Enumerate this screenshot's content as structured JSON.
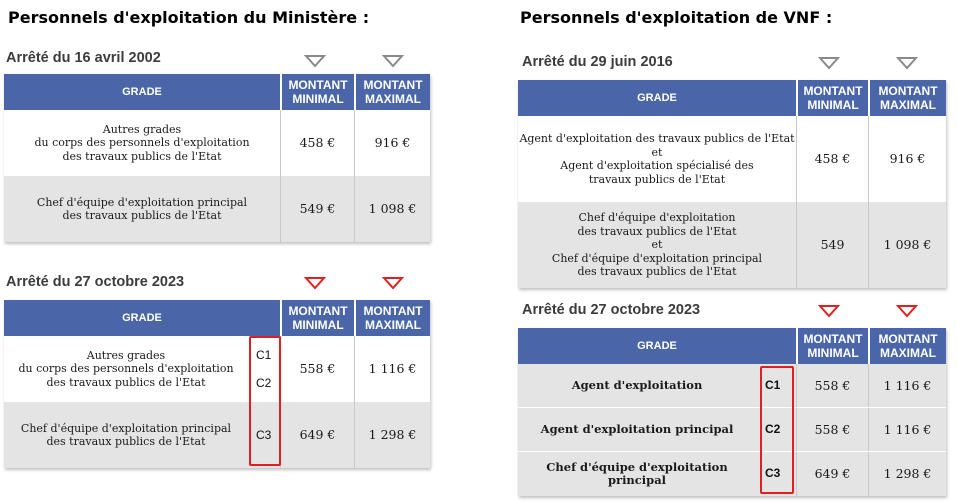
{
  "left": {
    "title": "Personnels d'exploitation du Ministère :",
    "blocks": [
      {
        "decree": "Arrêté du 16 avril 2002",
        "arrow_color": "#8a8a8a",
        "headers": {
          "grade": "GRADE",
          "min_1": "MONTANT",
          "min_2": "MINIMAL",
          "max_1": "MONTANT",
          "max_2": "MAXIMAL"
        },
        "rows": [
          {
            "grade_lines": [
              "Autres grades",
              "du corps des personnels d'exploitation",
              "des travaux publics de l'Etat"
            ],
            "min": "458 €",
            "max": "916 €"
          },
          {
            "grade_lines": [
              "Chef d'équipe d'exploitation principal",
              "des travaux publics de l'Etat"
            ],
            "min": "549 €",
            "max": "1 098 €"
          }
        ]
      },
      {
        "decree": "Arrêté du 27 octobre 2023",
        "arrow_color": "#e02020",
        "headers": {
          "grade": "GRADE",
          "min_1": "MONTANT",
          "min_2": "MINIMAL",
          "max_1": "MONTANT",
          "max_2": "MAXIMAL"
        },
        "rows": [
          {
            "grade_lines": [
              "Autres grades",
              "du corps des personnels d'exploitation",
              "des travaux publics de l'Etat"
            ],
            "codes": [
              "C1",
              "C2"
            ],
            "min": "558 €",
            "max": "1 116 €"
          },
          {
            "grade_lines": [
              "Chef d'équipe d'exploitation principal",
              "des travaux publics de l'Etat"
            ],
            "codes": [
              "C3"
            ],
            "min": "649 €",
            "max": "1 298 €"
          }
        ]
      }
    ]
  },
  "right": {
    "title": "Personnels d'exploitation de VNF :",
    "blocks": [
      {
        "decree": "Arrêté du 29 juin 2016",
        "arrow_color": "#8a8a8a",
        "headers": {
          "grade": "GRADE",
          "min_1": "MONTANT",
          "min_2": "MINIMAL",
          "max_1": "MONTANT",
          "max_2": "MAXIMAL"
        },
        "rows": [
          {
            "grade_lines": [
              "Agent d'exploitation des travaux publics de l'Etat",
              "et",
              "Agent d'exploitation spécialisé des",
              "travaux publics de l'Etat"
            ],
            "min": "458 €",
            "max": "916 €"
          },
          {
            "grade_lines": [
              "Chef d'équipe d'exploitation",
              "des travaux publics de l'Etat",
              "et",
              "Chef d'équipe d'exploitation principal",
              "des travaux publics de l'Etat"
            ],
            "min": "549",
            "max": "1 098 €"
          }
        ]
      },
      {
        "decree": "Arrêté du 27 octobre 2023",
        "arrow_color": "#e02020",
        "headers": {
          "grade": "GRADE",
          "min_1": "MONTANT",
          "min_2": "MINIMAL",
          "max_1": "MONTANT",
          "max_2": "MAXIMAL"
        },
        "rows": [
          {
            "grade_lines": [
              "Agent d'exploitation"
            ],
            "codes": [
              "C1"
            ],
            "min": "558 €",
            "max": "1 116 €"
          },
          {
            "grade_lines": [
              "Agent d'exploitation principal"
            ],
            "codes": [
              "C2"
            ],
            "min": "558 €",
            "max": "1 116 €"
          },
          {
            "grade_lines": [
              "Chef d'équipe d'exploitation principal"
            ],
            "codes": [
              "C3"
            ],
            "min": "649 €",
            "max": "1 298 €"
          }
        ]
      }
    ]
  }
}
